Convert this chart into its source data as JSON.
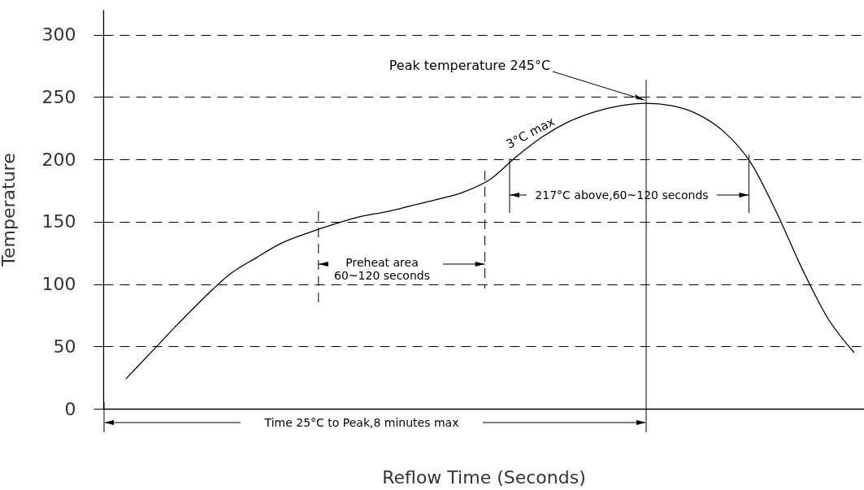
{
  "chart_data": {
    "type": "line",
    "xlabel": "Reflow Time (Seconds)",
    "ylabel": "Temperature",
    "categories": [
      null,
      null,
      null,
      null,
      null,
      null,
      null,
      null,
      null,
      null,
      null,
      null,
      null,
      null,
      null,
      null,
      null,
      null,
      null,
      null,
      null,
      null,
      null,
      null,
      null,
      null,
      null,
      null,
      null
    ],
    "series": [
      {
        "color": "#000000",
        "values": [
          24,
          46,
          68,
          89,
          108,
          121,
          133,
          141,
          148,
          154,
          158,
          163,
          168,
          174,
          184,
          202,
          218,
          230,
          238,
          243,
          245,
          243,
          236,
          222,
          198,
          158,
          112,
          72,
          45
        ]
      }
    ],
    "ylim": [
      0,
      320
    ],
    "yticks": [
      0,
      50,
      100,
      150,
      200,
      250,
      300
    ],
    "grid": "y",
    "tick_labels": "y",
    "marker": "none",
    "line_style": "solid",
    "annotations": [
      "Peak temperature 245°C",
      "3°C max",
      "217°C above,60~120 seconds",
      "Preheat area 60~120 seconds",
      "Time 25°C to Peak,8 minutes max"
    ]
  }
}
